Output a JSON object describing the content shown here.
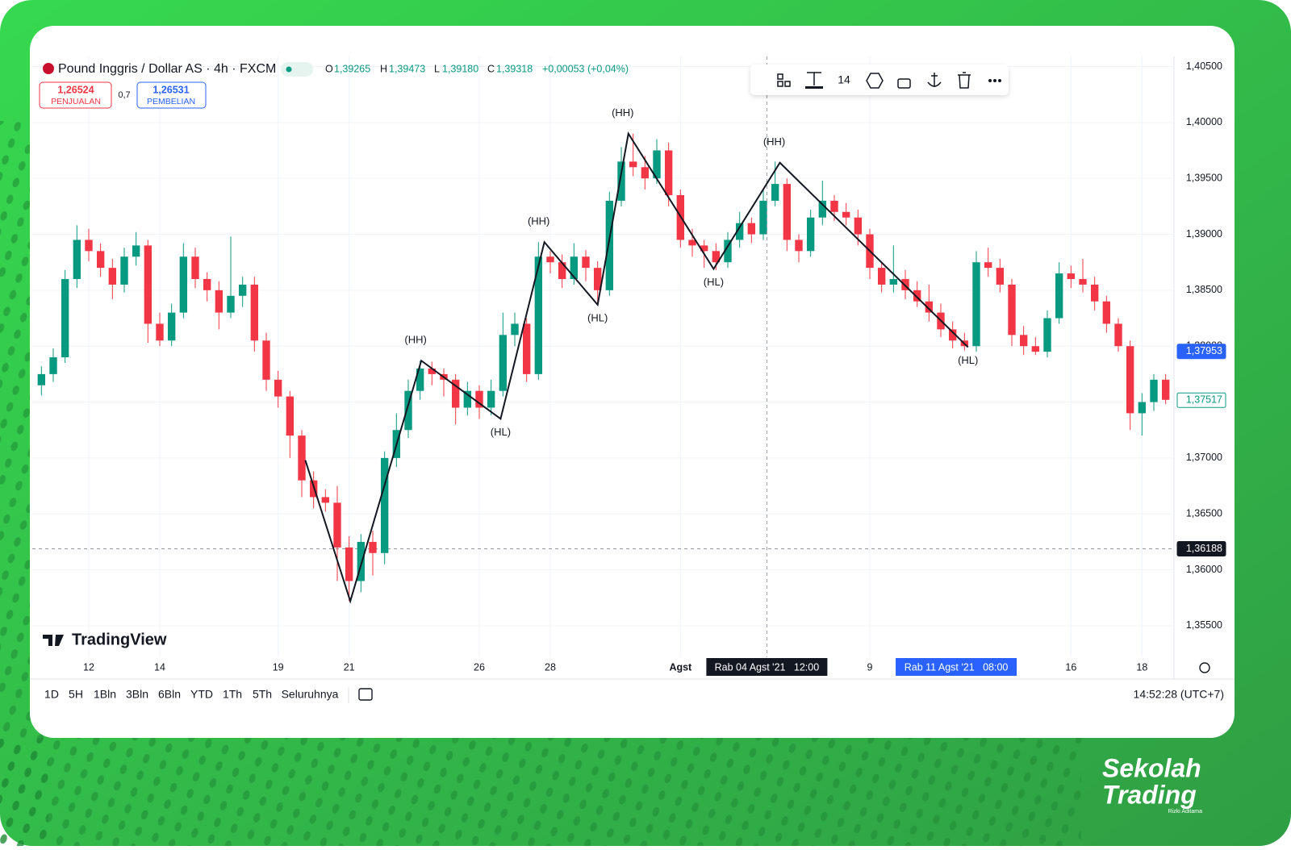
{
  "header": {
    "symbol": "Pound Inggris / Dollar AS · 4h · FXCM",
    "ohlc": [
      {
        "key": "O",
        "value": "1,39265"
      },
      {
        "key": "H",
        "value": "1,39473"
      },
      {
        "key": "L",
        "value": "1,39180"
      },
      {
        "key": "C",
        "value": "1,39318"
      }
    ],
    "change": "+0,00053 (+0,04%)"
  },
  "trade": {
    "sell_price": "1,26524",
    "sell_label": "PENJUALAN",
    "spread": "0,7",
    "buy_price": "1,26531",
    "buy_label": "PEMBELIAN"
  },
  "toolbar": {
    "font_size": "14"
  },
  "watermark": "TradingView",
  "range_buttons": [
    "1D",
    "5H",
    "1Bln",
    "3Bln",
    "6Bln",
    "YTD",
    "1Th",
    "5Th",
    "Seluruhnya"
  ],
  "clock": "14:52:28 (UTC+7)",
  "brand": {
    "line1": "Sekolah",
    "line2": "Trading",
    "author": "Rizki Aditama"
  },
  "chart_data": {
    "type": "candlestick",
    "up_color": "#089981",
    "down_color": "#f23645",
    "grid": true,
    "categories": [
      null,
      null,
      null,
      null,
      "12",
      null,
      null,
      null,
      null,
      null,
      "14",
      null,
      null,
      null,
      null,
      null,
      null,
      null,
      null,
      null,
      "19",
      null,
      null,
      null,
      null,
      null,
      "21",
      null,
      null,
      null,
      null,
      null,
      null,
      null,
      null,
      null,
      null,
      "26",
      null,
      null,
      null,
      null,
      null,
      "28",
      null,
      null,
      null,
      null,
      null,
      null,
      null,
      null,
      null,
      null,
      "Agst",
      null,
      null,
      null,
      null,
      null,
      null,
      null,
      null,
      null,
      null,
      null,
      null,
      null,
      null,
      null,
      "9",
      null,
      null,
      null,
      null,
      null,
      null,
      null,
      null,
      null,
      null,
      null,
      null,
      null,
      null,
      null,
      null,
      "16",
      null,
      null,
      null,
      null,
      null,
      "18",
      null,
      null
    ],
    "open": [
      1.3765,
      1.3775,
      1.379,
      1.386,
      1.3895,
      1.3885,
      1.387,
      1.3855,
      1.388,
      1.389,
      1.382,
      1.3805,
      1.383,
      1.388,
      1.386,
      1.385,
      1.383,
      1.3845,
      1.3855,
      1.3805,
      1.377,
      1.3755,
      1.372,
      1.368,
      1.3665,
      1.366,
      1.362,
      1.359,
      1.3625,
      1.3615,
      1.37,
      1.3725,
      1.376,
      1.378,
      1.3775,
      1.377,
      1.3745,
      1.376,
      1.3745,
      1.376,
      1.381,
      1.382,
      1.3775,
      1.388,
      1.3875,
      1.386,
      1.388,
      1.387,
      1.385,
      1.393,
      1.3965,
      1.396,
      1.395,
      1.3975,
      1.3935,
      1.3895,
      1.389,
      1.3885,
      1.3875,
      1.3895,
      1.391,
      1.39,
      1.393,
      1.3945,
      1.3895,
      1.3885,
      1.3915,
      1.393,
      1.392,
      1.3915,
      1.39,
      1.387,
      1.3855,
      1.386,
      1.385,
      1.384,
      1.383,
      1.3815,
      1.3805,
      1.38,
      1.3875,
      1.387,
      1.3855,
      1.381,
      1.38,
      1.3795,
      1.3825,
      1.3865,
      1.386,
      1.3855,
      1.384,
      1.382,
      1.38,
      1.374,
      1.375,
      1.377
    ],
    "high": [
      1.3782,
      1.3798,
      1.3868,
      1.3908,
      1.3905,
      1.3892,
      1.3878,
      1.3888,
      1.3902,
      1.3895,
      1.383,
      1.3838,
      1.3892,
      1.3888,
      1.3866,
      1.3858,
      1.3898,
      1.3862,
      1.3862,
      1.3812,
      1.3778,
      1.376,
      1.3725,
      1.3688,
      1.3672,
      1.3675,
      1.363,
      1.3632,
      1.3635,
      1.3706,
      1.374,
      1.377,
      1.3787,
      1.3786,
      1.378,
      1.3775,
      1.3768,
      1.3765,
      1.377,
      1.383,
      1.383,
      1.3825,
      1.3893,
      1.3885,
      1.3882,
      1.3892,
      1.3886,
      1.3876,
      1.3938,
      1.3978,
      1.399,
      1.397,
      1.3985,
      1.3982,
      1.394,
      1.3905,
      1.3895,
      1.3892,
      1.3902,
      1.392,
      1.3915,
      1.394,
      1.3965,
      1.395,
      1.39,
      1.3922,
      1.3948,
      1.3935,
      1.3928,
      1.3922,
      1.3905,
      1.3875,
      1.389,
      1.3868,
      1.3858,
      1.3855,
      1.3838,
      1.3822,
      1.3812,
      1.3885,
      1.3888,
      1.3878,
      1.386,
      1.3818,
      1.3808,
      1.3832,
      1.3875,
      1.3872,
      1.3878,
      1.3862,
      1.3845,
      1.3825,
      1.3805,
      1.3758,
      1.3775,
      1.3775
    ],
    "low": [
      1.3756,
      1.3768,
      1.3785,
      1.3852,
      1.3876,
      1.3862,
      1.3842,
      1.3848,
      1.3872,
      1.3803,
      1.38,
      1.38,
      1.3825,
      1.3852,
      1.384,
      1.3815,
      1.3825,
      1.3835,
      1.3795,
      1.376,
      1.3745,
      1.37,
      1.3665,
      1.3655,
      1.3652,
      1.359,
      1.3572,
      1.358,
      1.3595,
      1.3605,
      1.3692,
      1.3718,
      1.3752,
      1.3765,
      1.3755,
      1.373,
      1.3738,
      1.3735,
      1.3738,
      1.3755,
      1.38,
      1.3768,
      1.377,
      1.3865,
      1.3852,
      1.3855,
      1.3858,
      1.3838,
      1.3845,
      1.3925,
      1.3952,
      1.394,
      1.3945,
      1.3925,
      1.3888,
      1.388,
      1.387,
      1.3868,
      1.387,
      1.3888,
      1.3892,
      1.3895,
      1.3925,
      1.3885,
      1.3875,
      1.388,
      1.3908,
      1.3912,
      1.3908,
      1.389,
      1.386,
      1.3848,
      1.3848,
      1.3842,
      1.3835,
      1.3822,
      1.3808,
      1.3798,
      1.3796,
      1.3795,
      1.3862,
      1.3848,
      1.38,
      1.3792,
      1.3792,
      1.379,
      1.382,
      1.3852,
      1.3848,
      1.3832,
      1.3812,
      1.3795,
      1.3725,
      1.372,
      1.3742,
      1.3748
    ],
    "close": [
      1.3775,
      1.379,
      1.386,
      1.3895,
      1.3885,
      1.387,
      1.3855,
      1.388,
      1.389,
      1.382,
      1.3805,
      1.383,
      1.388,
      1.386,
      1.385,
      1.383,
      1.3845,
      1.3855,
      1.3805,
      1.377,
      1.3755,
      1.372,
      1.368,
      1.3665,
      1.366,
      1.362,
      1.359,
      1.3625,
      1.3615,
      1.37,
      1.3725,
      1.376,
      1.378,
      1.3775,
      1.377,
      1.3745,
      1.376,
      1.3745,
      1.376,
      1.381,
      1.382,
      1.3775,
      1.388,
      1.3875,
      1.386,
      1.388,
      1.387,
      1.385,
      1.393,
      1.3965,
      1.396,
      1.395,
      1.3975,
      1.3935,
      1.3895,
      1.389,
      1.3885,
      1.3875,
      1.3895,
      1.391,
      1.39,
      1.393,
      1.3945,
      1.3895,
      1.3885,
      1.3915,
      1.393,
      1.392,
      1.3915,
      1.39,
      1.387,
      1.3855,
      1.386,
      1.385,
      1.384,
      1.383,
      1.3815,
      1.3805,
      1.38,
      1.3875,
      1.387,
      1.3855,
      1.381,
      1.38,
      1.3795,
      1.3825,
      1.3865,
      1.386,
      1.3855,
      1.384,
      1.382,
      1.38,
      1.374,
      1.375,
      1.377,
      1.3752
    ],
    "ylim": [
      1.3524,
      1.4059
    ],
    "yticks": [
      {
        "value": 1.355,
        "label": "1,35500"
      },
      {
        "value": 1.36,
        "label": "1,36000"
      },
      {
        "value": 1.365,
        "label": "1,36500"
      },
      {
        "value": 1.37,
        "label": "1,37000"
      },
      {
        "value": 1.375,
        "label": "1,37500"
      },
      {
        "value": 1.38,
        "label": "1,38000"
      },
      {
        "value": 1.385,
        "label": "1,38500"
      },
      {
        "value": 1.39,
        "label": "1,39000"
      },
      {
        "value": 1.395,
        "label": "1,39500"
      },
      {
        "value": 1.4,
        "label": "1,40000"
      },
      {
        "value": 1.405,
        "label": "1,40500"
      }
    ],
    "zigzag": [
      {
        "x": 22.3,
        "y": 1.3698
      },
      {
        "x": 26.1,
        "y": 1.3572
      },
      {
        "x": 32.1,
        "y": 1.3787,
        "label": "(HH)"
      },
      {
        "x": 38.8,
        "y": 1.3735,
        "label": "(HL)"
      },
      {
        "x": 42.5,
        "y": 1.3893,
        "label": "(HH)"
      },
      {
        "x": 47,
        "y": 1.3837,
        "label": "(HL)"
      },
      {
        "x": 49.6,
        "y": 1.399,
        "label": "(HH)"
      },
      {
        "x": 56.8,
        "y": 1.3869,
        "label": "(HL)"
      },
      {
        "x": 62.4,
        "y": 1.3964,
        "label": "(HH)"
      },
      {
        "x": 78.3,
        "y": 1.3799,
        "label": "(HL)"
      }
    ],
    "price_markers": [
      {
        "value": 1.37953,
        "label": "1,37953",
        "color": "#2962ff",
        "style": "fill"
      },
      {
        "value": 1.37517,
        "label": "1,37517",
        "color": "#089981",
        "style": "outline"
      },
      {
        "value": 1.36188,
        "label": "1,36188",
        "color": "#131722",
        "style": "fill",
        "line": true
      }
    ],
    "time_markers": [
      {
        "x": 61.3,
        "label": "Rab 04 Agst '21   12:00",
        "color": "#131722",
        "line": true
      },
      {
        "x": 77.3,
        "label": "Rab 11 Agst '21   08:00",
        "color": "#2962ff"
      }
    ]
  }
}
